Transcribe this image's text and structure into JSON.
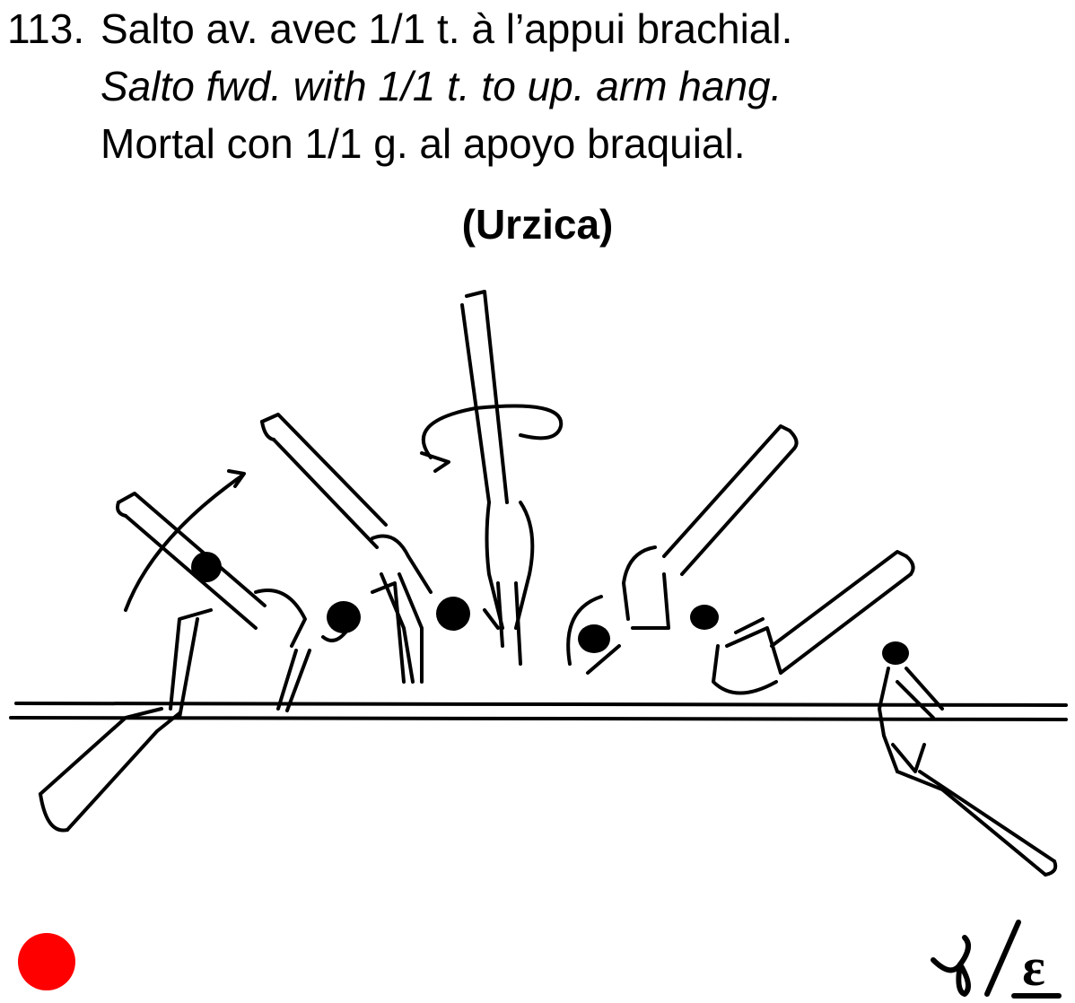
{
  "element": {
    "number": "113.",
    "text_fr": "Salto av. avec 1/1 t. à l’appui brachial.",
    "text_en": "Salto fwd. with 1/1 t. to up. arm hang.",
    "text_es": "Mortal con 1/1 g. al apoyo braquial.",
    "name": "(Urzica)"
  },
  "value_marker": {
    "color": "#ff0000",
    "letter": "ε"
  }
}
